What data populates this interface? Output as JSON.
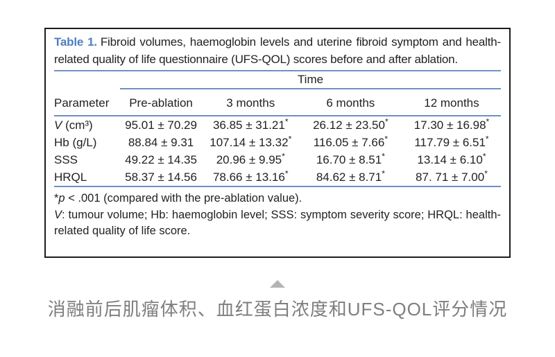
{
  "table": {
    "title_label": "Table 1.",
    "title_text": "Fibroid volumes, haemoglobin levels and uterine fibroid symptom and health-related quality of life questionnaire (UFS-QOL) scores before and after ablation.",
    "time_header": "Time",
    "columns": [
      "Parameter",
      "Pre-ablation",
      "3 months",
      "6 months",
      "12 months"
    ],
    "rows": [
      {
        "param_italic": "V",
        "param_rest": " (cm³)",
        "cells": [
          {
            "value": "95.01 ± 70.29",
            "star": ""
          },
          {
            "value": "36.85 ± 31.21",
            "star": "*"
          },
          {
            "value": "26.12 ± 23.50",
            "star": "*"
          },
          {
            "value": "17.30 ± 16.98",
            "star": "*"
          }
        ]
      },
      {
        "param_italic": "",
        "param_rest": "Hb (g/L)",
        "cells": [
          {
            "value": "88.84 ± 9.31",
            "star": ""
          },
          {
            "value": "107.14 ± 13.32",
            "star": "*"
          },
          {
            "value": "116.05 ± 7.66",
            "star": "*"
          },
          {
            "value": "117.79 ± 6.51",
            "star": "*"
          }
        ]
      },
      {
        "param_italic": "",
        "param_rest": "SSS",
        "cells": [
          {
            "value": "49.22 ± 14.35",
            "star": ""
          },
          {
            "value": "20.96 ± 9.95",
            "star": "*"
          },
          {
            "value": "16.70 ± 8.51",
            "star": "*"
          },
          {
            "value": "13.14 ± 6.10",
            "star": "*"
          }
        ]
      },
      {
        "param_italic": "",
        "param_rest": "HRQL",
        "cells": [
          {
            "value": "58.37 ± 14.56",
            "star": ""
          },
          {
            "value": "78.66 ± 13.16",
            "star": "*"
          },
          {
            "value": "84.62 ± 8.71",
            "star": "*"
          },
          {
            "value": "87. 71 ± 7.00",
            "star": "*"
          }
        ]
      }
    ],
    "footnotes": {
      "fn1_star": "*",
      "fn1_italic": "p",
      "fn1_rest": " < .001 (compared with the pre-ablation value).",
      "fn2_italic": "V",
      "fn2_rest": ": tumour volume; Hb: haemoglobin level; SSS: symptom severity score; HRQL: health-related quality of life score."
    }
  },
  "caption": {
    "triangle_icon": "up-triangle",
    "text": "消融前后肌瘤体积、血红蛋白浓度和UFS-QOL评分情况"
  },
  "colors": {
    "accent_blue_label": "#4d7fbe",
    "rule_blue": "#6f8fc7",
    "border_black": "#1c1c1c",
    "caption_gray": "#7e7e7e",
    "triangle_gray": "#b4b4b4"
  }
}
